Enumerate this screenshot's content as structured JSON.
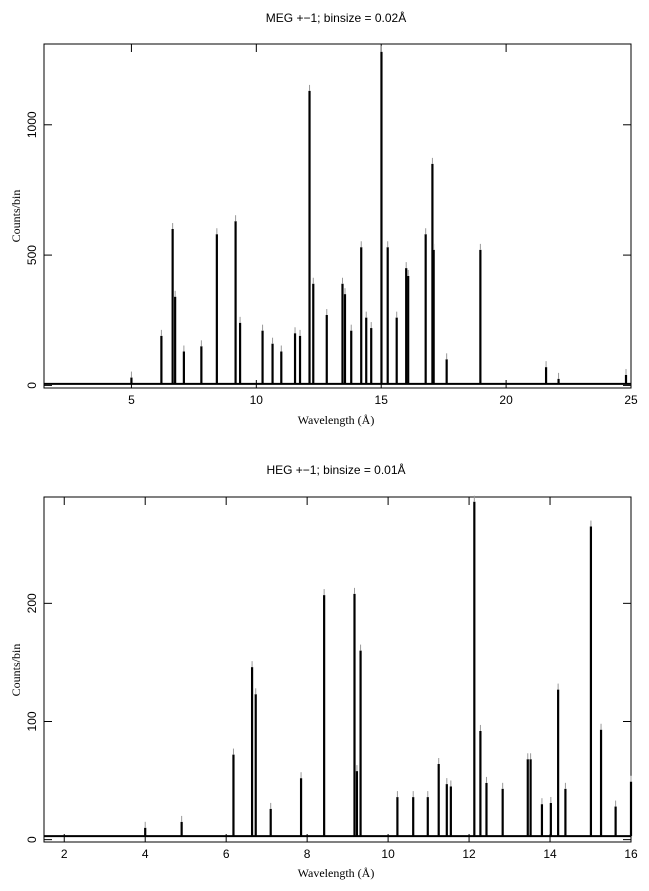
{
  "chart_data": [
    {
      "type": "line",
      "title": "MEG +−1; binsize = 0.02Å",
      "xlabel": "Wavelength (Å)",
      "ylabel": "Counts/bin",
      "xlim": [
        1.5,
        25
      ],
      "ylim": [
        -10,
        1310
      ],
      "xticks": [
        5,
        10,
        15,
        20,
        25
      ],
      "yticks": [
        0,
        500,
        1000
      ],
      "baseline": 6,
      "x": [
        5.0,
        6.2,
        6.65,
        6.75,
        7.1,
        7.8,
        8.42,
        9.17,
        9.35,
        10.25,
        10.65,
        11.0,
        11.55,
        11.75,
        12.13,
        12.28,
        12.82,
        13.45,
        13.55,
        13.8,
        14.2,
        14.4,
        14.6,
        15.01,
        15.26,
        15.62,
        16.0,
        16.08,
        16.78,
        17.05,
        17.1,
        17.62,
        18.97,
        21.6,
        22.1,
        24.8
      ],
      "y": [
        30,
        190,
        600,
        340,
        130,
        150,
        580,
        630,
        240,
        210,
        160,
        130,
        200,
        190,
        1130,
        390,
        270,
        390,
        350,
        210,
        530,
        260,
        220,
        1280,
        530,
        260,
        450,
        420,
        580,
        850,
        520,
        100,
        520,
        70,
        25,
        40
      ]
    },
    {
      "type": "line",
      "title": "HEG +−1; binsize = 0.01Å",
      "xlabel": "Wavelength (Å)",
      "ylabel": "Counts/bin",
      "xlim": [
        1.5,
        16
      ],
      "ylim": [
        -2,
        290
      ],
      "xticks": [
        2,
        4,
        6,
        8,
        10,
        12,
        14,
        16
      ],
      "yticks": [
        0,
        100,
        200
      ],
      "baseline": 3,
      "x": [
        4.0,
        4.9,
        6.18,
        6.64,
        6.73,
        7.1,
        7.85,
        8.42,
        9.17,
        9.23,
        9.32,
        10.23,
        10.62,
        10.98,
        11.25,
        11.45,
        11.55,
        12.13,
        12.28,
        12.43,
        12.83,
        13.45,
        13.52,
        13.8,
        14.02,
        14.2,
        14.38,
        15.01,
        15.26,
        15.62,
        16.0
      ],
      "y": [
        10,
        15,
        72,
        146,
        123,
        26,
        52,
        207,
        208,
        58,
        160,
        36,
        36,
        36,
        64,
        47,
        45,
        286,
        92,
        48,
        43,
        68,
        68,
        30,
        31,
        127,
        43,
        265,
        93,
        28,
        49
      ]
    }
  ]
}
